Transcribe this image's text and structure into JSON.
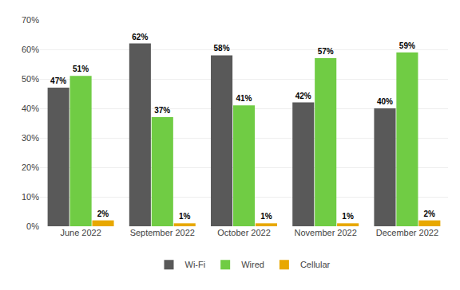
{
  "chart_data": {
    "type": "bar",
    "categories": [
      "June 2022",
      "September 2022",
      "October 2022",
      "November 2022",
      "December 2022"
    ],
    "series": [
      {
        "name": "Wi-Fi",
        "color": "#595959",
        "values": [
          47,
          62,
          58,
          42,
          40
        ],
        "value_labels": [
          "47%",
          "62%",
          "58%",
          "42%",
          "40%"
        ]
      },
      {
        "name": "Wired",
        "color": "#70cc44",
        "values": [
          51,
          37,
          41,
          57,
          59
        ],
        "value_labels": [
          "51%",
          "37%",
          "41%",
          "57%",
          "59%"
        ]
      },
      {
        "name": "Cellular",
        "color": "#e8a800",
        "values": [
          2,
          1,
          1,
          1,
          2
        ],
        "value_labels": [
          "2%",
          "1%",
          "1%",
          "1%",
          "2%"
        ]
      }
    ],
    "ylim": [
      0,
      70
    ],
    "yticks": [
      {
        "value": 0,
        "label": "0%"
      },
      {
        "value": 10,
        "label": "10%"
      },
      {
        "value": 20,
        "label": "20%"
      },
      {
        "value": 30,
        "label": "30%"
      },
      {
        "value": 40,
        "label": "40%"
      },
      {
        "value": 50,
        "label": "50%"
      },
      {
        "value": 60,
        "label": "60%"
      },
      {
        "value": 70,
        "label": "70%"
      }
    ],
    "grid": true,
    "data_labels": true,
    "legend": "bottom"
  }
}
